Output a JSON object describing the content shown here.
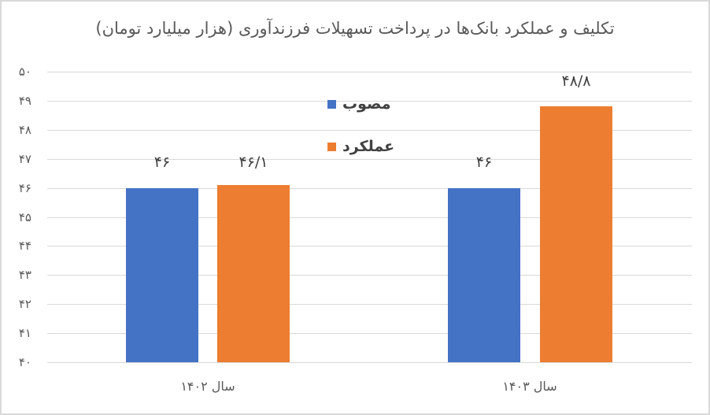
{
  "chart_data": {
    "type": "bar",
    "title": "تکلیف و عملکرد بانک‌ها در پرداخت تسهیلات فرزندآوری (هزار میلیارد تومان)",
    "categories": [
      "سال ۱۴۰۲",
      "سال ۱۴۰۳"
    ],
    "series": [
      {
        "name": "مصوب",
        "color": "#4472c4",
        "values": [
          46,
          46
        ],
        "labels": [
          "۴۶",
          "۴۶"
        ]
      },
      {
        "name": "عملکرد",
        "color": "#ed7d31",
        "values": [
          46.1,
          48.8
        ],
        "labels": [
          "۴۶/۱",
          "۴۸/۸"
        ]
      }
    ],
    "xlabel": "",
    "ylabel": "",
    "ylim": [
      40,
      50
    ],
    "yticks": [
      40,
      41,
      42,
      43,
      44,
      45,
      46,
      47,
      48,
      49,
      50
    ],
    "ytick_labels": [
      "۴۰",
      "۴۱",
      "۴۲",
      "۴۳",
      "۴۴",
      "۴۵",
      "۴۶",
      "۴۷",
      "۴۸",
      "۴۹",
      "۵۰"
    ],
    "grid": true,
    "legend_position": "inside-top-center"
  },
  "labels": {
    "title": "تکلیف و عملکرد بانک‌ها در پرداخت تسهیلات فرزندآوری (هزار میلیارد تومان)",
    "cat0": "سال ۱۴۰۲",
    "cat1": "سال ۱۴۰۳",
    "legend0": "مصوب",
    "legend1": "عملکرد",
    "v00": "۴۶",
    "v10": "۴۶/۱",
    "v01": "۴۶",
    "v11": "۴۸/۸"
  }
}
